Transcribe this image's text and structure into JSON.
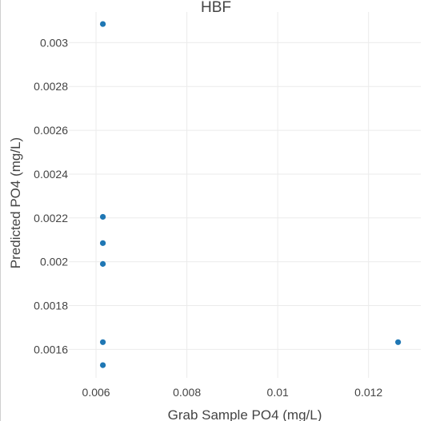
{
  "chart_data": {
    "type": "scatter",
    "title": "HBF",
    "xlabel": "Grab Sample PO4 (mg/L)",
    "ylabel": "Predicted PO4 (mg/L)",
    "xlim": [
      0.0054,
      0.01315
    ],
    "ylim": [
      0.00147,
      0.00314
    ],
    "x_ticks": [
      "0.006",
      "0.008",
      "0.01",
      "0.012"
    ],
    "x_tick_values": [
      0.006,
      0.008,
      0.01,
      0.012
    ],
    "y_ticks": [
      "0.0016",
      "0.0018",
      "0.002",
      "0.0022",
      "0.0024",
      "0.0026",
      "0.0028",
      "0.003"
    ],
    "y_tick_values": [
      0.0016,
      0.0018,
      0.002,
      0.0022,
      0.0024,
      0.0026,
      0.0028,
      0.003
    ],
    "grid": true,
    "marker_color": "#1f77b4",
    "points": [
      {
        "x": 0.00615,
        "y": 0.003085
      },
      {
        "x": 0.00615,
        "y": 0.002205
      },
      {
        "x": 0.00615,
        "y": 0.002085
      },
      {
        "x": 0.00615,
        "y": 0.00199
      },
      {
        "x": 0.00615,
        "y": 0.001633
      },
      {
        "x": 0.00615,
        "y": 0.001528
      },
      {
        "x": 0.01265,
        "y": 0.001633
      }
    ]
  }
}
